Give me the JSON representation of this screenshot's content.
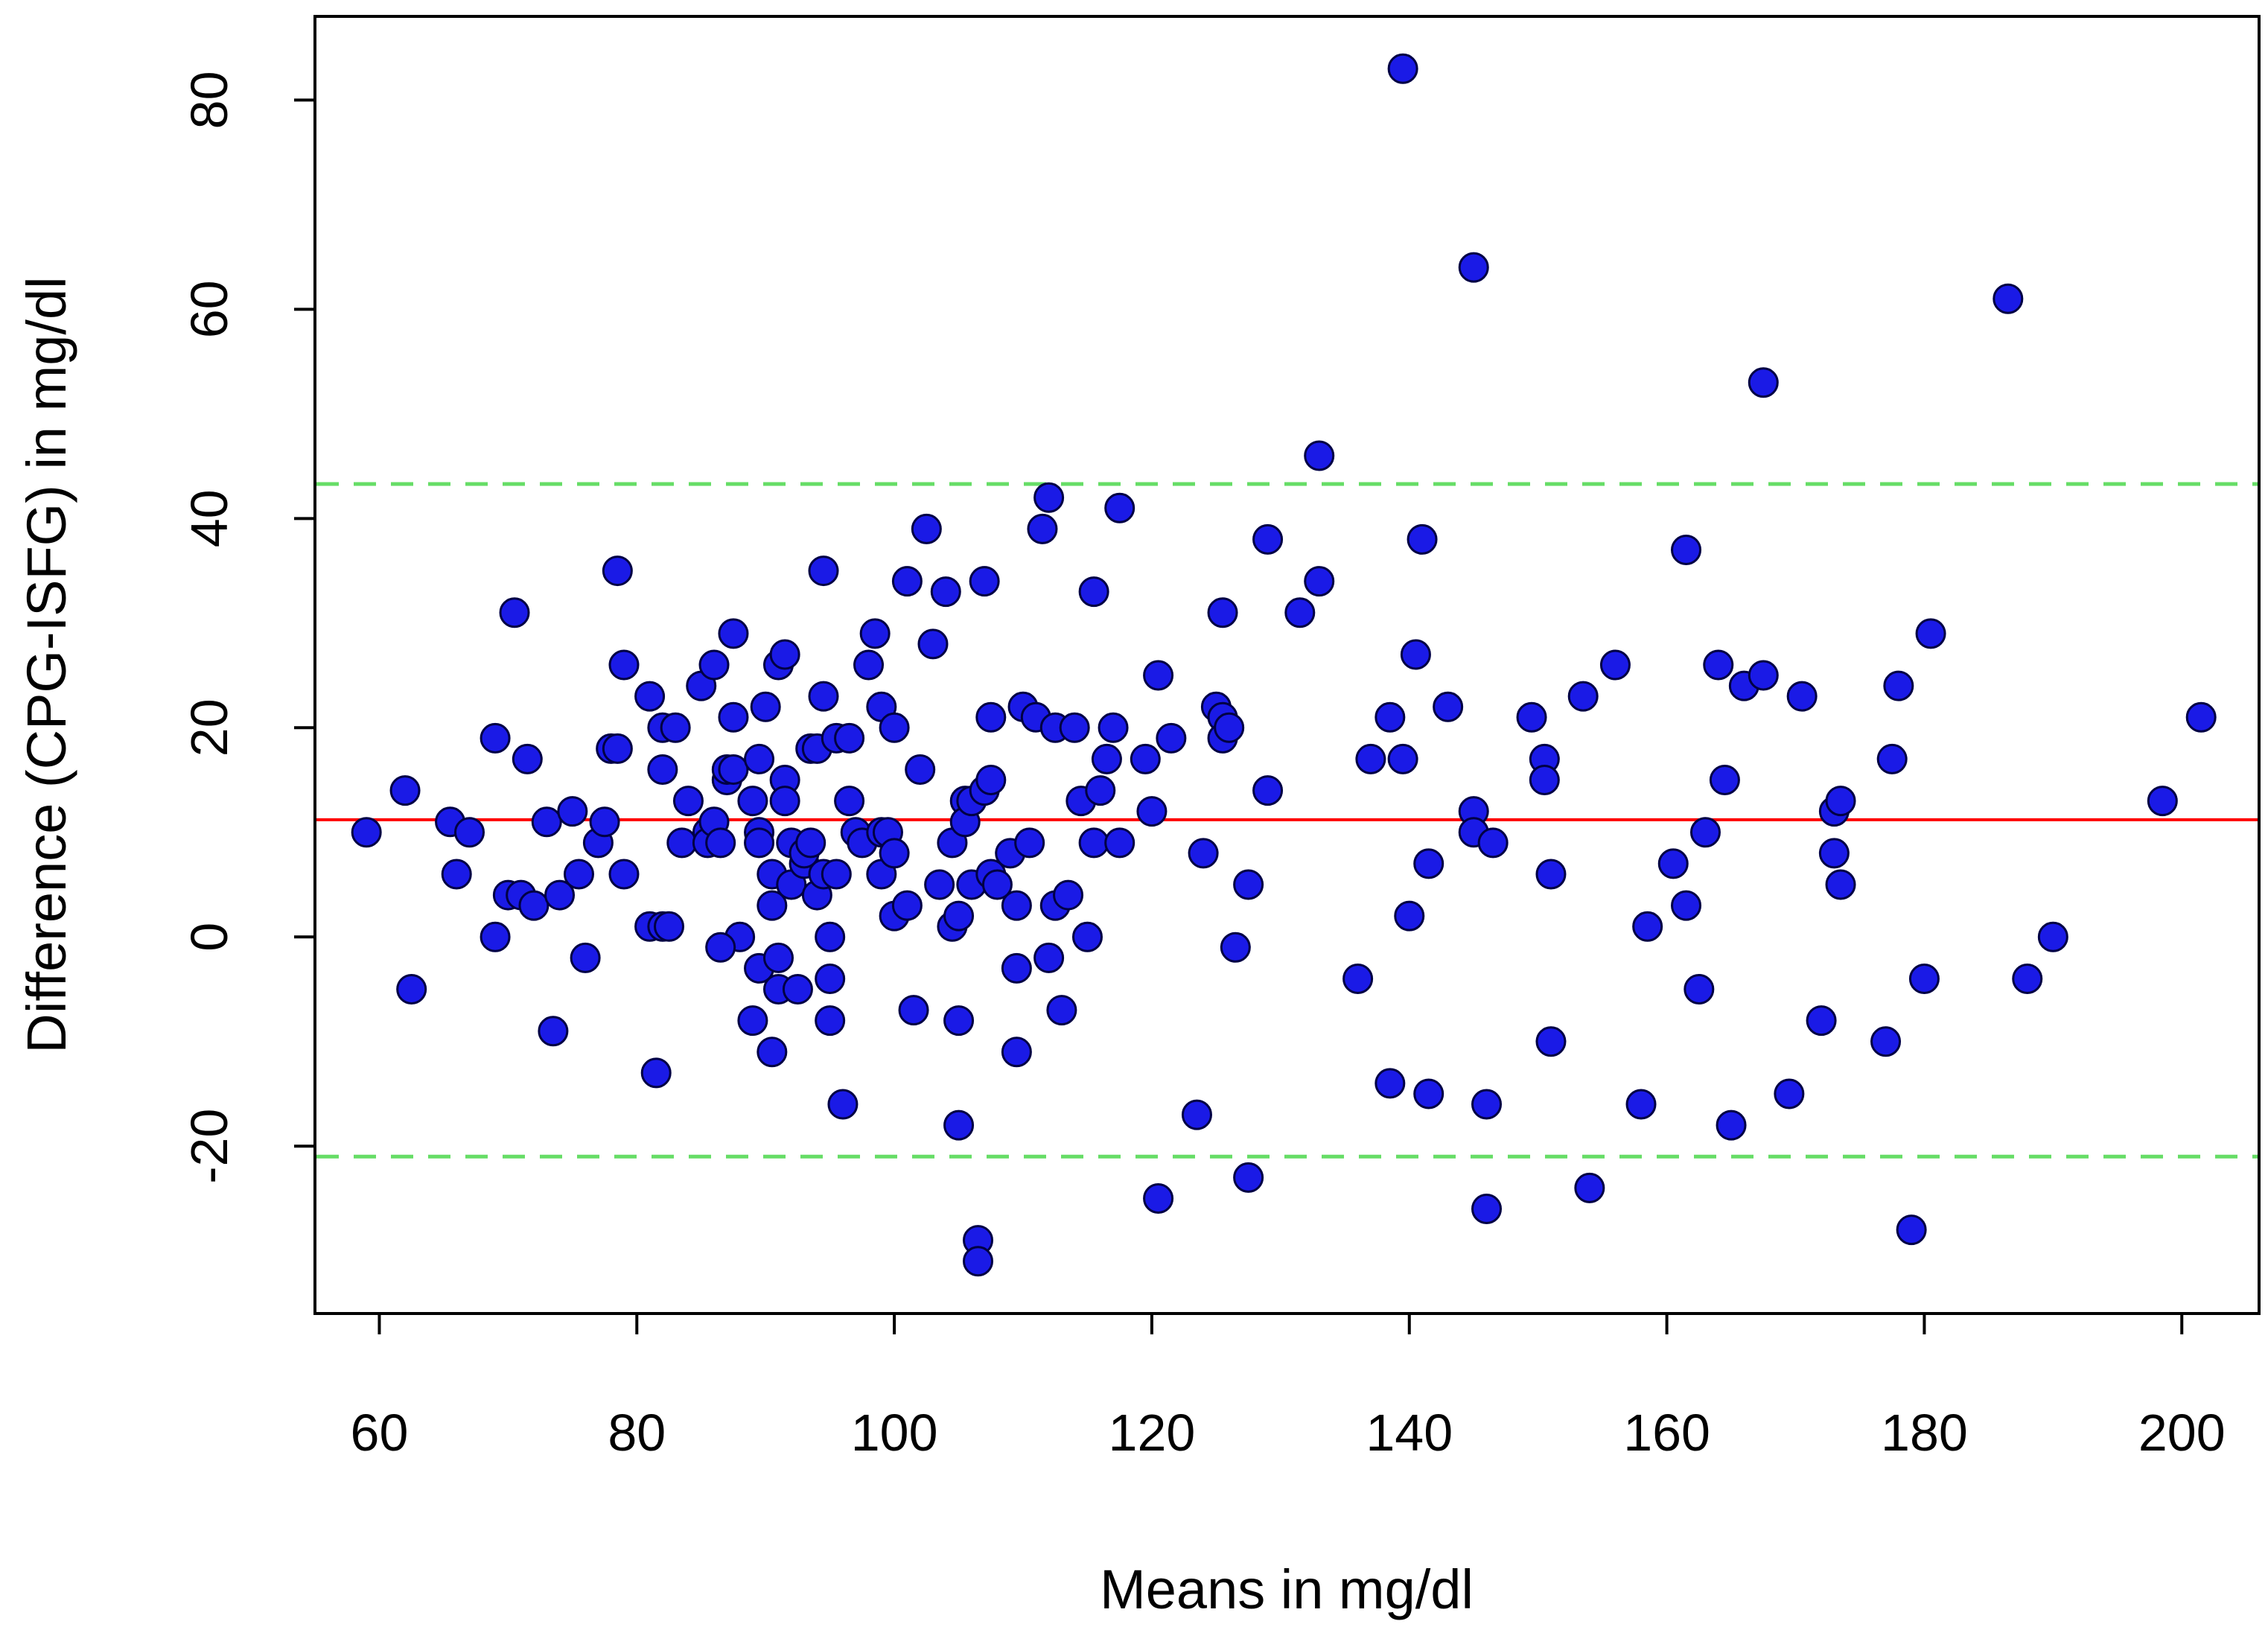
{
  "chart_data": {
    "type": "scatter",
    "title": "",
    "xlabel": "Means in mg/dl",
    "ylabel": "Difference (CPG-ISFG) in mg/dl",
    "xlim": [
      55,
      206
    ],
    "ylim": [
      -36,
      88
    ],
    "xticks": [
      60,
      80,
      100,
      120,
      140,
      160,
      180,
      200
    ],
    "yticks": [
      -20,
      0,
      20,
      40,
      60,
      80
    ],
    "xtick_labels": [
      "60",
      "80",
      "100",
      "120",
      "140",
      "160",
      "180",
      "200"
    ],
    "ytick_labels": [
      "-20",
      "0",
      "20",
      "40",
      "60",
      "80"
    ],
    "grid": false,
    "reference_lines": [
      {
        "name": "mean-difference",
        "y": 11.2,
        "color": "#ff0000",
        "style": "solid"
      },
      {
        "name": "upper-limit-of-agreement",
        "y": 43.3,
        "color": "#00cc00",
        "style": "dashed"
      },
      {
        "name": "lower-limit-of-agreement",
        "y": -21,
        "color": "#00cc00",
        "style": "dashed"
      }
    ],
    "point_fill": "#1a1ae6",
    "point_stroke": "#000044",
    "points": [
      [
        59,
        10
      ],
      [
        62,
        14
      ],
      [
        62.5,
        -5
      ],
      [
        65.5,
        11
      ],
      [
        66,
        6
      ],
      [
        67,
        10
      ],
      [
        69,
        19
      ],
      [
        69,
        0
      ],
      [
        70,
        4
      ],
      [
        70.5,
        31
      ],
      [
        71,
        4
      ],
      [
        71.5,
        17
      ],
      [
        72,
        3
      ],
      [
        73,
        11
      ],
      [
        73.5,
        -9
      ],
      [
        74,
        4
      ],
      [
        75,
        12
      ],
      [
        75.5,
        6
      ],
      [
        76,
        -2
      ],
      [
        77,
        9
      ],
      [
        77.5,
        11
      ],
      [
        78,
        18
      ],
      [
        78.5,
        18
      ],
      [
        78.5,
        35
      ],
      [
        79,
        6
      ],
      [
        79,
        26
      ],
      [
        81,
        23
      ],
      [
        81,
        1
      ],
      [
        81.5,
        -13
      ],
      [
        82,
        1
      ],
      [
        82,
        16
      ],
      [
        82,
        20
      ],
      [
        82.5,
        1
      ],
      [
        83,
        20
      ],
      [
        83.5,
        9
      ],
      [
        84,
        13
      ],
      [
        85,
        24
      ],
      [
        85.5,
        10
      ],
      [
        85.5,
        9
      ],
      [
        86,
        26
      ],
      [
        86,
        11
      ],
      [
        86.5,
        9
      ],
      [
        87,
        15
      ],
      [
        87,
        16
      ],
      [
        87.5,
        16
      ],
      [
        87.5,
        29
      ],
      [
        87.5,
        21
      ],
      [
        88,
        0
      ],
      [
        86.5,
        -1
      ],
      [
        89,
        13
      ],
      [
        89,
        -8
      ],
      [
        89.5,
        17
      ],
      [
        89.5,
        10
      ],
      [
        89.5,
        -3
      ],
      [
        89.5,
        9
      ],
      [
        90,
        22
      ],
      [
        90.5,
        3
      ],
      [
        90.5,
        -11
      ],
      [
        90.5,
        6
      ],
      [
        91,
        -2
      ],
      [
        91,
        26
      ],
      [
        91.5,
        27
      ],
      [
        91.5,
        15
      ],
      [
        91.5,
        13
      ],
      [
        91,
        -5
      ],
      [
        92,
        5
      ],
      [
        92,
        9
      ],
      [
        92.5,
        -5
      ],
      [
        93,
        7
      ],
      [
        93,
        8
      ],
      [
        93.5,
        9
      ],
      [
        93.5,
        18
      ],
      [
        94,
        18
      ],
      [
        94,
        4
      ],
      [
        94.5,
        6
      ],
      [
        94.5,
        35
      ],
      [
        94.5,
        23
      ],
      [
        95,
        0
      ],
      [
        95,
        -4
      ],
      [
        95,
        -8
      ],
      [
        95.5,
        6
      ],
      [
        95.5,
        19
      ],
      [
        96,
        -16
      ],
      [
        96.5,
        19
      ],
      [
        96.5,
        13
      ],
      [
        97,
        10
      ],
      [
        97.5,
        9
      ],
      [
        98,
        26
      ],
      [
        98.5,
        29
      ],
      [
        99,
        6
      ],
      [
        99,
        10
      ],
      [
        99,
        22
      ],
      [
        99.5,
        10
      ],
      [
        100,
        20
      ],
      [
        100,
        8
      ],
      [
        100,
        2
      ],
      [
        101,
        34
      ],
      [
        101,
        3
      ],
      [
        101.5,
        -7
      ],
      [
        102,
        16
      ],
      [
        102.5,
        39
      ],
      [
        103,
        28
      ],
      [
        103.5,
        5
      ],
      [
        104,
        33
      ],
      [
        104.5,
        1
      ],
      [
        104.5,
        9
      ],
      [
        105,
        -8
      ],
      [
        105,
        -18
      ],
      [
        105,
        2
      ],
      [
        105.5,
        13
      ],
      [
        105.5,
        11
      ],
      [
        106,
        13
      ],
      [
        106,
        5
      ],
      [
        106.5,
        -29
      ],
      [
        106.5,
        -31
      ],
      [
        107,
        34
      ],
      [
        107,
        14
      ],
      [
        107.5,
        21
      ],
      [
        107.5,
        15
      ],
      [
        107.5,
        6
      ],
      [
        108,
        5
      ],
      [
        109,
        8
      ],
      [
        109.5,
        3
      ],
      [
        109.5,
        -3
      ],
      [
        109.5,
        -11
      ],
      [
        110,
        22
      ],
      [
        110.5,
        9
      ],
      [
        111,
        21
      ],
      [
        111.5,
        39
      ],
      [
        112,
        42
      ],
      [
        112,
        -2
      ],
      [
        112.5,
        20
      ],
      [
        112.5,
        3
      ],
      [
        113,
        -7
      ],
      [
        113.5,
        4
      ],
      [
        114,
        20
      ],
      [
        114.5,
        13
      ],
      [
        115,
        0
      ],
      [
        115.5,
        33
      ],
      [
        115.5,
        9
      ],
      [
        116,
        14
      ],
      [
        116.5,
        17
      ],
      [
        117,
        20
      ],
      [
        117.5,
        41
      ],
      [
        117.5,
        9
      ],
      [
        119.5,
        17
      ],
      [
        120,
        12
      ],
      [
        120.5,
        25
      ],
      [
        120.5,
        -25
      ],
      [
        121.5,
        19
      ],
      [
        123.5,
        -17
      ],
      [
        124,
        8
      ],
      [
        125,
        22
      ],
      [
        125.5,
        21
      ],
      [
        125.5,
        31
      ],
      [
        125.5,
        19
      ],
      [
        126,
        20
      ],
      [
        126.5,
        -1
      ],
      [
        127.5,
        -23
      ],
      [
        127.5,
        5
      ],
      [
        129,
        38
      ],
      [
        129,
        14
      ],
      [
        131.5,
        31
      ],
      [
        133,
        46
      ],
      [
        133,
        34
      ],
      [
        136,
        -4
      ],
      [
        137,
        17
      ],
      [
        138.5,
        21
      ],
      [
        138.5,
        -14
      ],
      [
        139.5,
        17
      ],
      [
        139.5,
        83
      ],
      [
        140,
        2
      ],
      [
        140.5,
        27
      ],
      [
        141,
        38
      ],
      [
        141.5,
        7
      ],
      [
        141.5,
        -15
      ],
      [
        143,
        22
      ],
      [
        145,
        12
      ],
      [
        145,
        64
      ],
      [
        145,
        10
      ],
      [
        146,
        -16
      ],
      [
        146,
        -26
      ],
      [
        146.5,
        9
      ],
      [
        149.5,
        21
      ],
      [
        150.5,
        17
      ],
      [
        150.5,
        15
      ],
      [
        151,
        6
      ],
      [
        151,
        -10
      ],
      [
        153.5,
        23
      ],
      [
        154,
        -24
      ],
      [
        156,
        26
      ],
      [
        158,
        -16
      ],
      [
        158.5,
        1
      ],
      [
        160.5,
        7
      ],
      [
        161.5,
        3
      ],
      [
        161.5,
        37
      ],
      [
        162.5,
        -5
      ],
      [
        163,
        10
      ],
      [
        164,
        26
      ],
      [
        164.5,
        15
      ],
      [
        165,
        -18
      ],
      [
        166,
        24
      ],
      [
        167.5,
        53
      ],
      [
        167.5,
        25
      ],
      [
        169.5,
        -15
      ],
      [
        170.5,
        23
      ],
      [
        172,
        -8
      ],
      [
        173,
        12
      ],
      [
        173,
        8
      ],
      [
        173.5,
        13
      ],
      [
        173.5,
        5
      ],
      [
        177,
        -10
      ],
      [
        177.5,
        17
      ],
      [
        178,
        24
      ],
      [
        179,
        -28
      ],
      [
        180,
        -4
      ],
      [
        180.5,
        29
      ],
      [
        186.5,
        61
      ],
      [
        188,
        -4
      ],
      [
        190,
        0
      ],
      [
        198.5,
        13
      ],
      [
        201.5,
        21
      ]
    ]
  }
}
